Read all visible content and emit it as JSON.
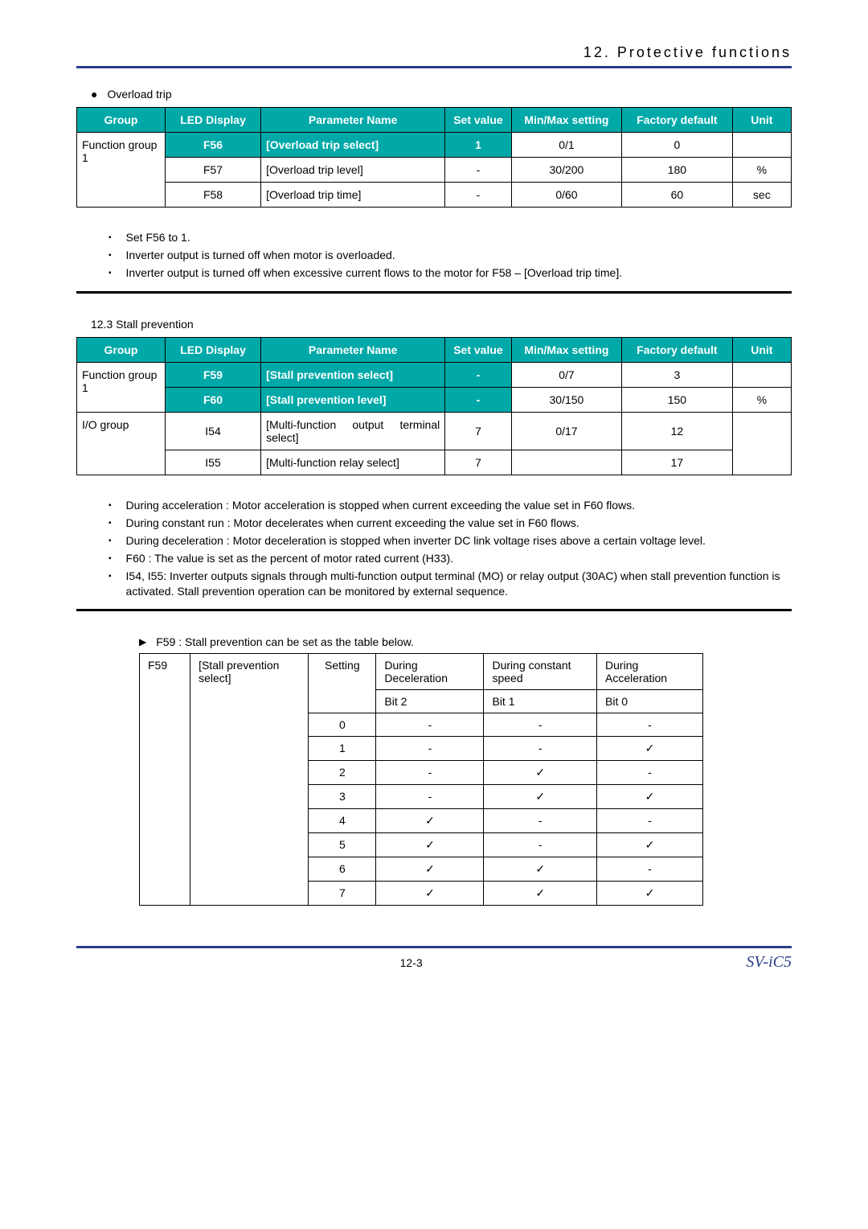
{
  "header": {
    "title": "12. Protective functions"
  },
  "section1": {
    "bullet": "Overload trip",
    "tableHeaders": [
      "Group",
      "LED Display",
      "Parameter Name",
      "Set value",
      "Min/Max setting",
      "Factory default",
      "Unit"
    ],
    "groupLabel": "Function group 1",
    "rows": [
      {
        "led": "F56",
        "pn": "[Overload trip select]",
        "sv": "1",
        "mm": "0/1",
        "fd": "0",
        "unit": "",
        "hl": true
      },
      {
        "led": "F57",
        "pn": "[Overload trip level]",
        "sv": "-",
        "mm": "30/200",
        "fd": "180",
        "unit": "%",
        "hl": false
      },
      {
        "led": "F58",
        "pn": "[Overload trip time]",
        "sv": "-",
        "mm": "0/60",
        "fd": "60",
        "unit": "sec",
        "hl": false
      }
    ],
    "notes": [
      "Set F56 to 1.",
      "Inverter output is turned off when motor is overloaded.",
      "Inverter output is turned off when excessive current flows to the motor for F58 – [Overload trip time]."
    ]
  },
  "section2": {
    "label": "12.3  Stall prevention",
    "tableHeaders": [
      "Group",
      "LED Display",
      "Parameter Name",
      "Set value",
      "Min/Max setting",
      "Factory default",
      "Unit"
    ],
    "group1": "Function group 1",
    "group2": "I/O group",
    "rows1": [
      {
        "led": "F59",
        "pn": "[Stall prevention select]",
        "sv": "-",
        "mm": "0/7",
        "fd": "3",
        "unit": "",
        "hl": true
      },
      {
        "led": "F60",
        "pn": "[Stall prevention level]",
        "sv": "-",
        "mm": "30/150",
        "fd": "150",
        "unit": "%",
        "hl": true
      }
    ],
    "rows2": [
      {
        "led": "I54",
        "pn": "[Multi-function output terminal select]",
        "sv": "7",
        "mm": "0/17",
        "fd": "12",
        "unit": "",
        "hl": false,
        "justify": true
      },
      {
        "led": "I55",
        "pn": "[Multi-function relay select]",
        "sv": "7",
        "mm": "",
        "fd": "17",
        "unit": "",
        "hl": false
      }
    ],
    "notes": [
      "During acceleration : Motor acceleration is stopped when current exceeding the value set in F60 flows.",
      "During constant run : Motor decelerates when current exceeding the value set in F60 flows.",
      "During deceleration : Motor deceleration is stopped when inverter DC link voltage rises above a certain voltage level.",
      "F60 : The value is set as the percent of motor rated current (H33).",
      "I54, I55: Inverter outputs signals through multi-function output terminal (MO) or relay output (30AC) when stall prevention function is activated. Stall prevention operation can be monitored by external sequence."
    ]
  },
  "bitSection": {
    "intro": "F59 : Stall prevention can be set as the table below.",
    "code": "F59",
    "name": "[Stall prevention select]",
    "colSetting": "Setting",
    "cols": [
      "During Deceleration",
      "During constant speed",
      "During Acceleration"
    ],
    "bits": [
      "Bit 2",
      "Bit 1",
      "Bit 0"
    ],
    "rows": [
      {
        "s": "0",
        "v": [
          "-",
          "-",
          "-"
        ]
      },
      {
        "s": "1",
        "v": [
          "-",
          "-",
          "✓"
        ]
      },
      {
        "s": "2",
        "v": [
          "-",
          "✓",
          "-"
        ]
      },
      {
        "s": "3",
        "v": [
          "-",
          "✓",
          "✓"
        ]
      },
      {
        "s": "4",
        "v": [
          "✓",
          "-",
          "-"
        ]
      },
      {
        "s": "5",
        "v": [
          "✓",
          "-",
          "✓"
        ]
      },
      {
        "s": "6",
        "v": [
          "✓",
          "✓",
          "-"
        ]
      },
      {
        "s": "7",
        "v": [
          "✓",
          "✓",
          "✓"
        ]
      }
    ]
  },
  "footer": {
    "page": "12-3",
    "model": "SV-iC5"
  },
  "style": {
    "header_color": "#00a8a8",
    "border_color": "#2c3e8a"
  }
}
